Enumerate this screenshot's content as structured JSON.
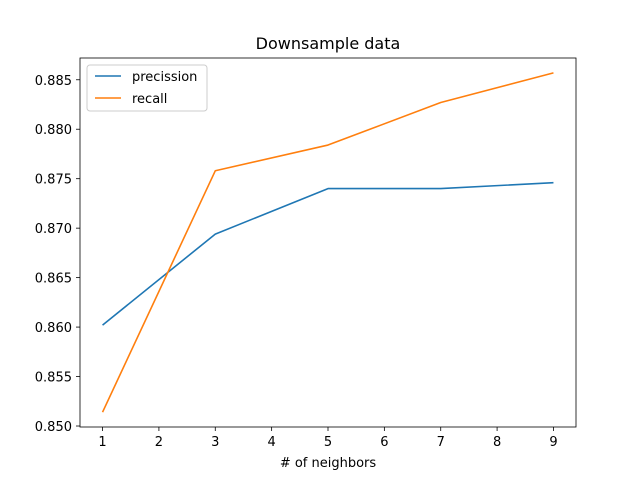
{
  "chart_data": {
    "type": "line",
    "title": "Downsample data",
    "xlabel": "# of neighbors",
    "ylabel": "",
    "x": [
      1,
      3,
      5,
      7,
      9
    ],
    "series": [
      {
        "name": "precission",
        "color": "#1f77b4",
        "values": [
          0.8602,
          0.8694,
          0.874,
          0.874,
          0.8746
        ]
      },
      {
        "name": "recall",
        "color": "#ff7f0e",
        "values": [
          0.8514,
          0.8758,
          0.8784,
          0.8827,
          0.8857
        ]
      }
    ],
    "xlim": [
      0.6,
      9.4
    ],
    "ylim": [
      0.8499,
      0.8872
    ],
    "xticks": [
      1,
      2,
      3,
      4,
      5,
      6,
      7,
      8,
      9
    ],
    "xtick_labels": [
      "1",
      "2",
      "3",
      "4",
      "5",
      "6",
      "7",
      "8",
      "9"
    ],
    "yticks": [
      0.85,
      0.855,
      0.86,
      0.865,
      0.87,
      0.875,
      0.88,
      0.885
    ],
    "ytick_labels": [
      "0.850",
      "0.855",
      "0.860",
      "0.865",
      "0.870",
      "0.875",
      "0.880",
      "0.885"
    ],
    "grid": false,
    "legend_position": "top-left"
  }
}
